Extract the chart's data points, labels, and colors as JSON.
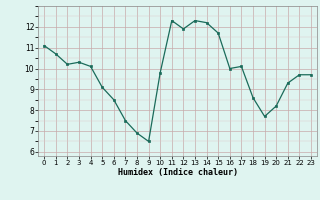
{
  "x": [
    0,
    1,
    2,
    3,
    4,
    5,
    6,
    7,
    8,
    9,
    10,
    11,
    12,
    13,
    14,
    15,
    16,
    17,
    18,
    19,
    20,
    21,
    22,
    23
  ],
  "y": [
    11.1,
    10.7,
    10.2,
    10.3,
    10.1,
    9.1,
    8.5,
    7.5,
    6.9,
    6.5,
    9.8,
    12.3,
    11.9,
    12.3,
    12.2,
    11.7,
    10.0,
    10.1,
    8.6,
    7.7,
    8.2,
    9.3,
    9.7,
    9.7
  ],
  "xlabel": "Humidex (Indice chaleur)",
  "xlim": [
    -0.5,
    23.5
  ],
  "ylim": [
    5.8,
    13.0
  ],
  "yticks": [
    6,
    7,
    8,
    9,
    10,
    11,
    12
  ],
  "xticks": [
    0,
    1,
    2,
    3,
    4,
    5,
    6,
    7,
    8,
    9,
    10,
    11,
    12,
    13,
    14,
    15,
    16,
    17,
    18,
    19,
    20,
    21,
    22,
    23
  ],
  "line_color": "#1a6b5a",
  "marker_color": "#1a6b5a",
  "bg_color": "#dff4f0",
  "grid_color_major": "#c8aaaa",
  "grid_color_minor": "#ddc8c8"
}
